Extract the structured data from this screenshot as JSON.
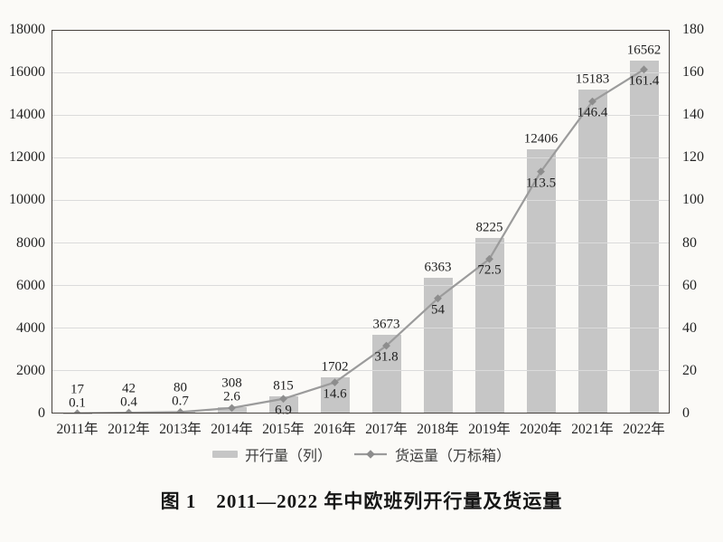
{
  "figure": {
    "caption": "图 1　2011—2022 年中欧班列开行量及货运量"
  },
  "legend": {
    "bar_label": "开行量（列）",
    "line_label": "货运量（万标箱）"
  },
  "chart_data": {
    "type": "bar+line",
    "title": "图 1　2011—2022 年中欧班列开行量及货运量",
    "categories": [
      "2011年",
      "2012年",
      "2013年",
      "2014年",
      "2015年",
      "2016年",
      "2017年",
      "2018年",
      "2019年",
      "2020年",
      "2021年",
      "2022年"
    ],
    "series": [
      {
        "name": "开行量（列）",
        "type": "bar",
        "axis": "left",
        "values": [
          17,
          42,
          80,
          308,
          815,
          1702,
          3673,
          6363,
          8225,
          12406,
          15183,
          16562
        ],
        "labels": [
          "17",
          "42",
          "80",
          "308",
          "815",
          "1702",
          "3673",
          "6363",
          "8225",
          "12406",
          "15183",
          "16562"
        ]
      },
      {
        "name": "货运量（万标箱）",
        "type": "line",
        "axis": "right",
        "values": [
          0.1,
          0.4,
          0.7,
          2.6,
          6.9,
          14.6,
          31.8,
          54,
          72.5,
          113.5,
          146.4,
          161.4
        ],
        "labels": [
          "0.1",
          "0.4",
          "0.7",
          "2.6",
          "6.9",
          "14.6",
          "31.8",
          "54",
          "72.5",
          "113.5",
          "146.4",
          "161.4"
        ]
      }
    ],
    "left_axis": {
      "min": 0,
      "max": 18000,
      "step": 2000,
      "tick_labels": [
        "0",
        "2000",
        "4000",
        "6000",
        "8000",
        "10000",
        "12000",
        "14000",
        "16000",
        "18000"
      ]
    },
    "right_axis": {
      "min": 0,
      "max": 180,
      "step": 20,
      "tick_labels": [
        "0",
        "20",
        "40",
        "60",
        "80",
        "100",
        "120",
        "140",
        "160",
        "180"
      ]
    },
    "grid": true,
    "legend_position": "bottom"
  },
  "colors": {
    "background": "#fbfaf7",
    "bar": "#c6c6c6",
    "grid": "#dbdbdb",
    "line": "#9b9b9b",
    "marker": "#8d8d8d",
    "axis_border": "#47423e",
    "text": "#1e1e1e"
  }
}
